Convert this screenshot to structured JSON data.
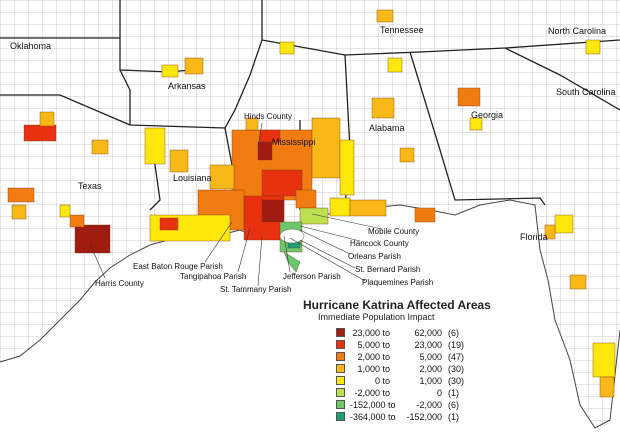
{
  "map": {
    "title": "Hurricane Katrina Affected Areas",
    "subtitle": "Immediate Population Impact",
    "state_labels": {
      "oklahoma": "Oklahoma",
      "tennessee": "Tennessee",
      "north_carolina": "North Carolina",
      "arkansas": "Arkansas",
      "south_carolina": "South Carolina",
      "mississippi": "Mississippi",
      "alabama": "Alabama",
      "georgia": "Georgia",
      "louisiana": "Louisiana",
      "texas": "Texas",
      "florida": "Florida"
    },
    "callouts": {
      "hinds": "Hinds County",
      "mobile": "Mobile County",
      "hancock": "Hancock County",
      "orleans": "Orleans Parish",
      "st_bernard": "St. Bernard Parish",
      "plaquemines": "Plaquemines Parish",
      "east_baton_rouge": "East Baton Rouge Parish",
      "tangipahoa": "Tangipahoa Parish",
      "jefferson": "Jefferson Parish",
      "st_tammany": "St. Tammany Parish",
      "harris": "Harris County"
    },
    "colors": {
      "c1": "#a01c12",
      "c2": "#e8320f",
      "c3": "#f07c12",
      "c4": "#f7b818",
      "c5": "#fde70c",
      "c6": "#bde052",
      "c7": "#6cc96a",
      "c8": "#1b9e77",
      "water": "#ffffff",
      "border": "#555555"
    },
    "legend": [
      {
        "from": "23,000",
        "to": "62,000",
        "count": "(6)",
        "color": "#a01c12"
      },
      {
        "from": "5,000",
        "to": "23,000",
        "count": "(19)",
        "color": "#e8320f"
      },
      {
        "from": "2,000",
        "to": "5,000",
        "count": "(47)",
        "color": "#f07c12"
      },
      {
        "from": "1,000",
        "to": "2,000",
        "count": "(30)",
        "color": "#f7b818"
      },
      {
        "from": "0",
        "to": "1,000",
        "count": "(30)",
        "color": "#fde70c"
      },
      {
        "from": "-2,000",
        "to": "0",
        "count": "(1)",
        "color": "#bde052"
      },
      {
        "from": "-152,000",
        "to": "-2,000",
        "count": "(6)",
        "color": "#6cc96a"
      },
      {
        "from": "-364,000",
        "to": "-152,000",
        "count": "(1)",
        "color": "#1b9e77"
      }
    ],
    "legend_to_word": "to"
  }
}
